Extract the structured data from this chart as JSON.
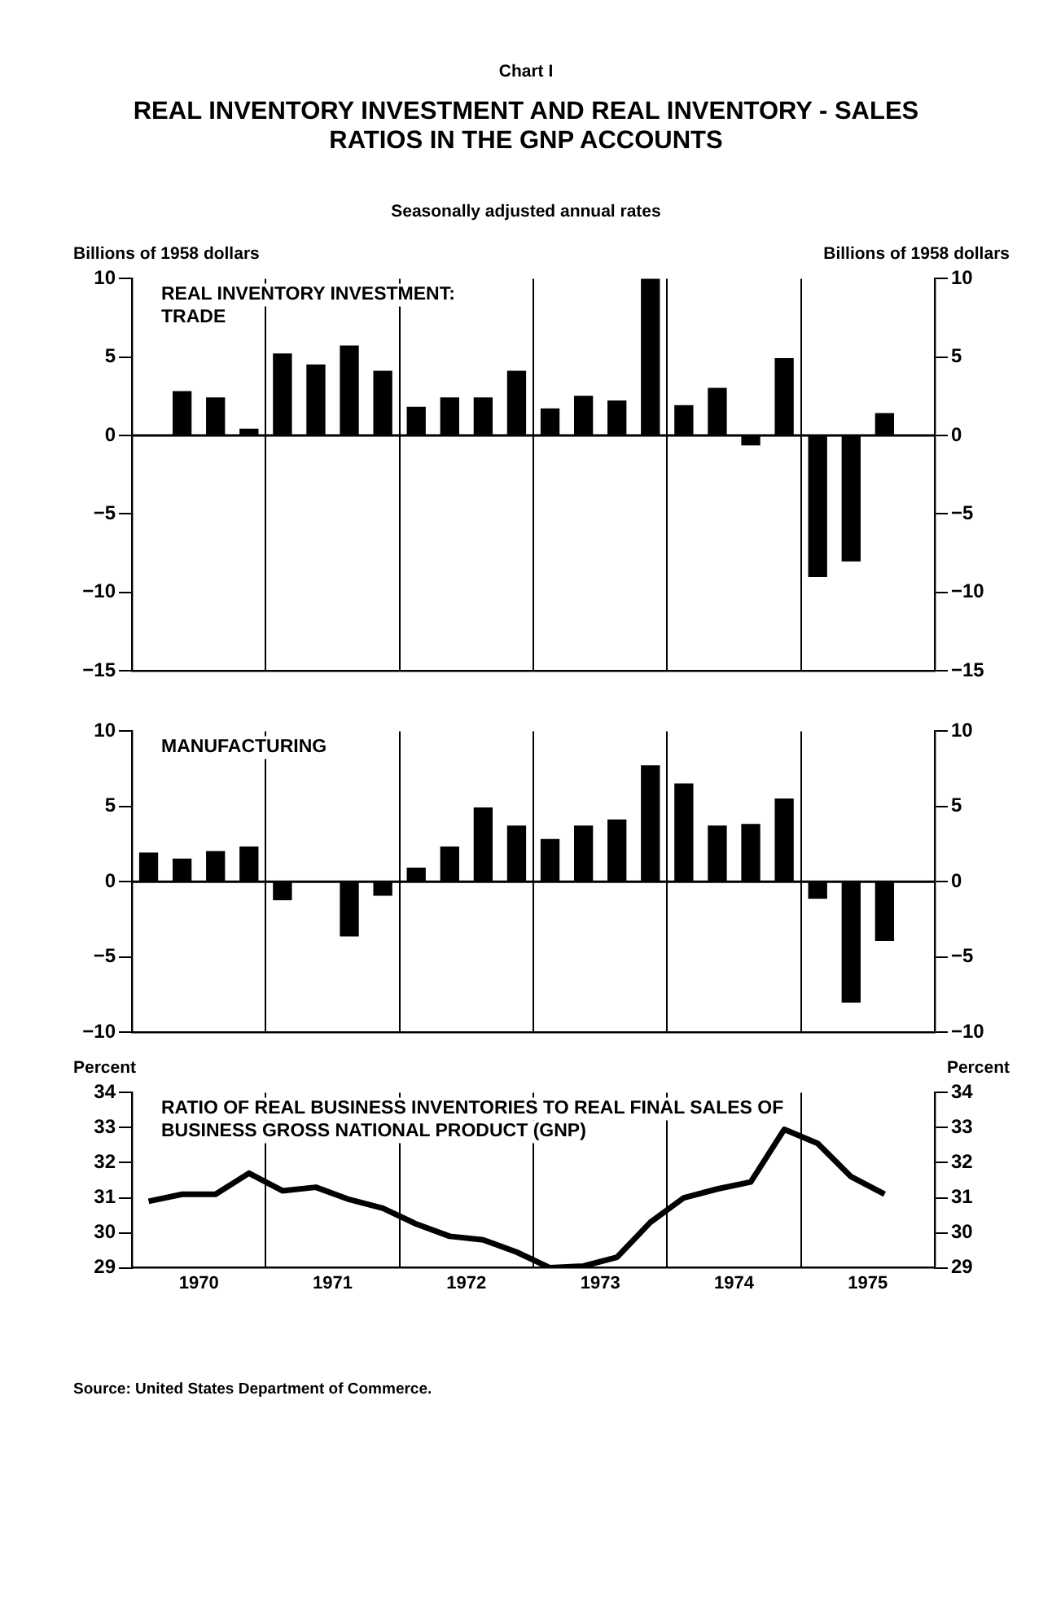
{
  "chart_data": [
    {
      "type": "bar",
      "title": "REAL INVENTORY INVESTMENT AND REAL INVENTORY - SALES RATIOS IN THE GNP ACCOUNTS",
      "subtitle": "Seasonally adjusted annual rates",
      "ylabel": "Billions of 1958 dollars",
      "y2label": "Billions of 1958 dollars",
      "annotations": [
        "Chart I",
        "REAL INVENTORY INVESTMENT: TRADE"
      ],
      "x": [
        1970.375,
        1970.625,
        1970.875,
        1971.125,
        1971.375,
        1971.625,
        1971.875,
        1972.125,
        1972.375,
        1972.625,
        1972.875,
        1973.125,
        1973.375,
        1973.625,
        1973.875,
        1974.125,
        1974.375,
        1974.625,
        1974.875,
        1975.125,
        1975.375,
        1975.625
      ],
      "values": [
        2.8,
        2.4,
        0.4,
        5.2,
        4.5,
        5.7,
        4.1,
        1.8,
        2.4,
        2.4,
        4.1,
        1.7,
        2.5,
        2.2,
        10.0,
        1.9,
        3.0,
        -0.6,
        4.9,
        -9.0,
        -8.0,
        1.4
      ],
      "color": "#000000",
      "xlim": [
        1970,
        1976
      ],
      "xticks": [
        {
          "value": 1971,
          "label": null
        },
        {
          "value": 1972,
          "label": null
        },
        {
          "value": 1973,
          "label": null
        },
        {
          "value": 1974,
          "label": null
        },
        {
          "value": 1975,
          "label": null
        }
      ],
      "ylim": [
        -15,
        10
      ],
      "yticks": [
        -15,
        -10,
        -5,
        0,
        5,
        10
      ],
      "y2lim": [
        -15,
        10
      ],
      "y2ticks": [
        -15,
        -10,
        -5,
        0,
        5,
        10
      ],
      "ref_lines": [
        {
          "axis": "y",
          "value": 0
        }
      ],
      "grid": "x",
      "legend": false,
      "tick_labels": "y"
    },
    {
      "type": "bar",
      "annotations": [
        "MANUFACTURING"
      ],
      "x": [
        1970.125,
        1970.375,
        1970.625,
        1970.875,
        1971.125,
        1971.375,
        1971.625,
        1971.875,
        1972.125,
        1972.375,
        1972.625,
        1972.875,
        1973.125,
        1973.375,
        1973.625,
        1973.875,
        1974.125,
        1974.375,
        1974.625,
        1974.875,
        1975.125,
        1975.375,
        1975.625
      ],
      "values": [
        1.9,
        1.5,
        2.0,
        2.3,
        -1.2,
        null,
        -3.6,
        -0.9,
        0.9,
        2.3,
        4.9,
        3.7,
        2.8,
        3.7,
        4.1,
        7.7,
        6.5,
        3.7,
        3.8,
        5.5,
        -1.1,
        -8.0,
        -3.9
      ],
      "color": "#000000",
      "xlim": [
        1970,
        1976
      ],
      "xticks": [
        {
          "value": 1971,
          "label": null
        },
        {
          "value": 1972,
          "label": null
        },
        {
          "value": 1973,
          "label": null
        },
        {
          "value": 1974,
          "label": null
        },
        {
          "value": 1975,
          "label": null
        }
      ],
      "ylim": [
        -10,
        10
      ],
      "yticks": [
        -10,
        -5,
        0,
        5,
        10
      ],
      "y2lim": [
        -10,
        10
      ],
      "y2ticks": [
        -10,
        -5,
        0,
        5,
        10
      ],
      "ref_lines": [
        {
          "axis": "y",
          "value": 0
        }
      ],
      "grid": "x",
      "legend": false,
      "tick_labels": "y"
    },
    {
      "type": "line",
      "ylabel": "Percent",
      "y2label": "Percent",
      "annotations": [
        "RATIO OF REAL BUSINESS INVENTORIES TO REAL FINAL SALES OF BUSINESS GROSS NATIONAL PRODUCT (GNP)",
        "Source: United States Department of Commerce."
      ],
      "x": [
        1970.125,
        1970.375,
        1970.625,
        1970.875,
        1971.125,
        1971.375,
        1971.625,
        1971.875,
        1972.125,
        1972.375,
        1972.625,
        1972.875,
        1973.125,
        1973.375,
        1973.625,
        1973.875,
        1974.125,
        1974.375,
        1974.625,
        1974.875,
        1975.125,
        1975.375,
        1975.625
      ],
      "values": [
        30.9,
        31.1,
        31.1,
        31.7,
        31.2,
        31.3,
        30.95,
        30.7,
        30.25,
        29.9,
        29.8,
        29.45,
        29.0,
        29.05,
        29.3,
        30.3,
        31.0,
        31.25,
        31.45,
        32.95,
        32.55,
        31.6,
        31.1
      ],
      "color": "#000000",
      "marker": "none",
      "line_style": "solid",
      "xlim": [
        1970,
        1976
      ],
      "xticks": [
        {
          "value": 1970.5,
          "label": "1970"
        },
        {
          "value": 1971,
          "label": null
        },
        {
          "value": 1971.5,
          "label": "1971"
        },
        {
          "value": 1972,
          "label": null
        },
        {
          "value": 1972.5,
          "label": "1972"
        },
        {
          "value": 1973,
          "label": null
        },
        {
          "value": 1973.5,
          "label": "1973"
        },
        {
          "value": 1974,
          "label": null
        },
        {
          "value": 1974.5,
          "label": "1974"
        },
        {
          "value": 1975,
          "label": null
        },
        {
          "value": 1975.5,
          "label": "1975"
        }
      ],
      "ylim": [
        29,
        34
      ],
      "yticks": [
        29,
        30,
        31,
        32,
        33,
        34
      ],
      "y2lim": [
        29,
        34
      ],
      "y2ticks": [
        29,
        30,
        31,
        32,
        33,
        34
      ],
      "grid": "x",
      "legend": false
    }
  ]
}
